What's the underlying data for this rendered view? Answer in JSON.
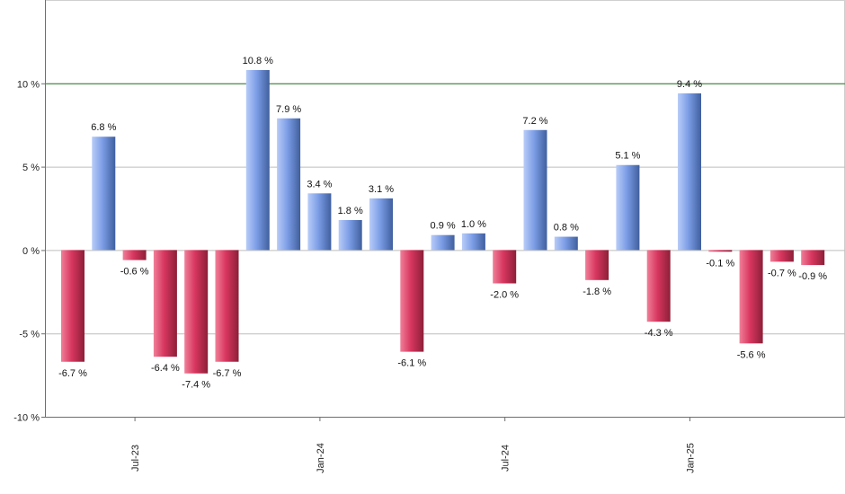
{
  "chart_data": {
    "type": "bar",
    "title": "",
    "xlabel": "",
    "ylabel": "",
    "ylim": [
      -10,
      15
    ],
    "y_ticks": [
      {
        "value": -10,
        "label": "-10 %"
      },
      {
        "value": -5,
        "label": "-5 %"
      },
      {
        "value": 0,
        "label": "0 %"
      },
      {
        "value": 5,
        "label": "5 %"
      },
      {
        "value": 10,
        "label": "10 %"
      }
    ],
    "x_ticks": [
      {
        "index": 2,
        "label": "Jul-23"
      },
      {
        "index": 8,
        "label": "Jan-24"
      },
      {
        "index": 14,
        "label": "Jul-24"
      },
      {
        "index": 20,
        "label": "Jan-25"
      }
    ],
    "values": [
      -6.7,
      6.8,
      -0.6,
      -6.4,
      -7.4,
      -6.7,
      10.8,
      7.9,
      3.4,
      1.8,
      3.1,
      -6.1,
      0.9,
      1.0,
      -2.0,
      7.2,
      0.8,
      -1.8,
      5.1,
      -4.3,
      9.4,
      -0.1,
      -5.6,
      -0.7,
      -0.9
    ],
    "labels": [
      "-6.7 %",
      "6.8 %",
      "-0.6 %",
      "-6.4 %",
      "-7.4 %",
      "-6.7 %",
      "10.8 %",
      "7.9 %",
      "3.4 %",
      "1.8 %",
      "3.1 %",
      "-6.1 %",
      "0.9 %",
      "1.0 %",
      "-2.0 %",
      "7.2 %",
      "0.8 %",
      "-1.8 %",
      "5.1 %",
      "-4.3 %",
      "9.4 %",
      "-0.1 %",
      "-5.6 %",
      "-0.7 %",
      "-0.9 %"
    ],
    "reference_line": 10,
    "grid": true
  },
  "colors": {
    "positive_light": "#b8ccf8",
    "positive_mid": "#7c9de6",
    "positive_dark": "#3f5f9e",
    "negative_light": "#f07f98",
    "negative_mid": "#d8365f",
    "negative_dark": "#8d1f38",
    "reference_line": "#2d7c2d"
  }
}
